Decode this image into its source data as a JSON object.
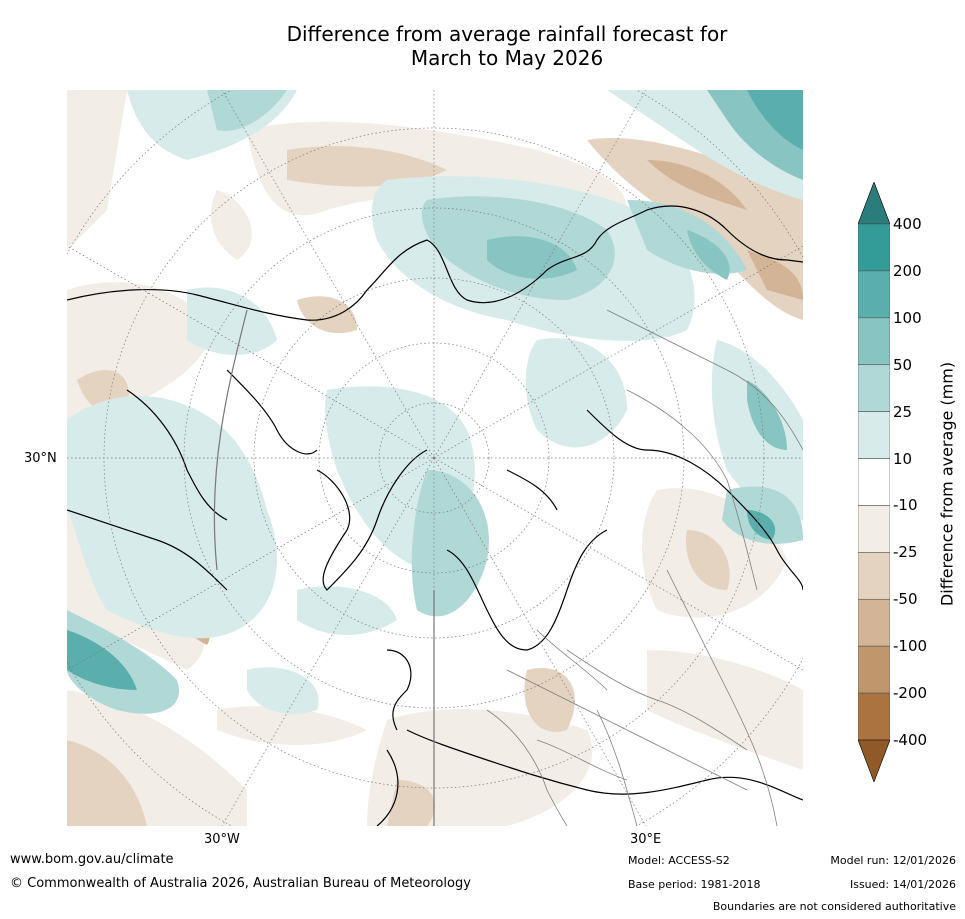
{
  "title": {
    "line1": "Difference from average rainfall forecast for",
    "line2": "March to May 2026"
  },
  "map": {
    "projection": "north polar stereographic",
    "region": "Northern hemisphere mid-to-high latitudes (Arctic, North Atlantic, Europe)",
    "axis_labels": {
      "lat_30n": "30°N",
      "lon_30w": "30°W",
      "lon_30e": "30°E"
    },
    "colorbar": {
      "label": "Difference from average (mm)",
      "ticks": [
        "400",
        "200",
        "100",
        "50",
        "25",
        "10",
        "-10",
        "-25",
        "-50",
        "-100",
        "-200",
        "-400"
      ],
      "colors": [
        "#2a7d7a",
        "#339b98",
        "#5aaeac",
        "#87c4c2",
        "#b0d8d7",
        "#d6ebea",
        "#ffffff",
        "#f2ede6",
        "#e5d3c1",
        "#d3b497",
        "#c0966d",
        "#aa733f",
        "#8f5a27"
      ]
    }
  },
  "footer": {
    "website": "www.bom.gov.au/climate",
    "copyright": "© Commonwealth of Australia 2026, Australian Bureau of Meteorology",
    "model": "Model: ACCESS-S2",
    "base_period": "Base period: 1981-2018",
    "model_run": "Model run: 12/01/2026",
    "issued": "Issued: 14/01/2026",
    "disclaimer": "Boundaries are not considered authoritative"
  }
}
